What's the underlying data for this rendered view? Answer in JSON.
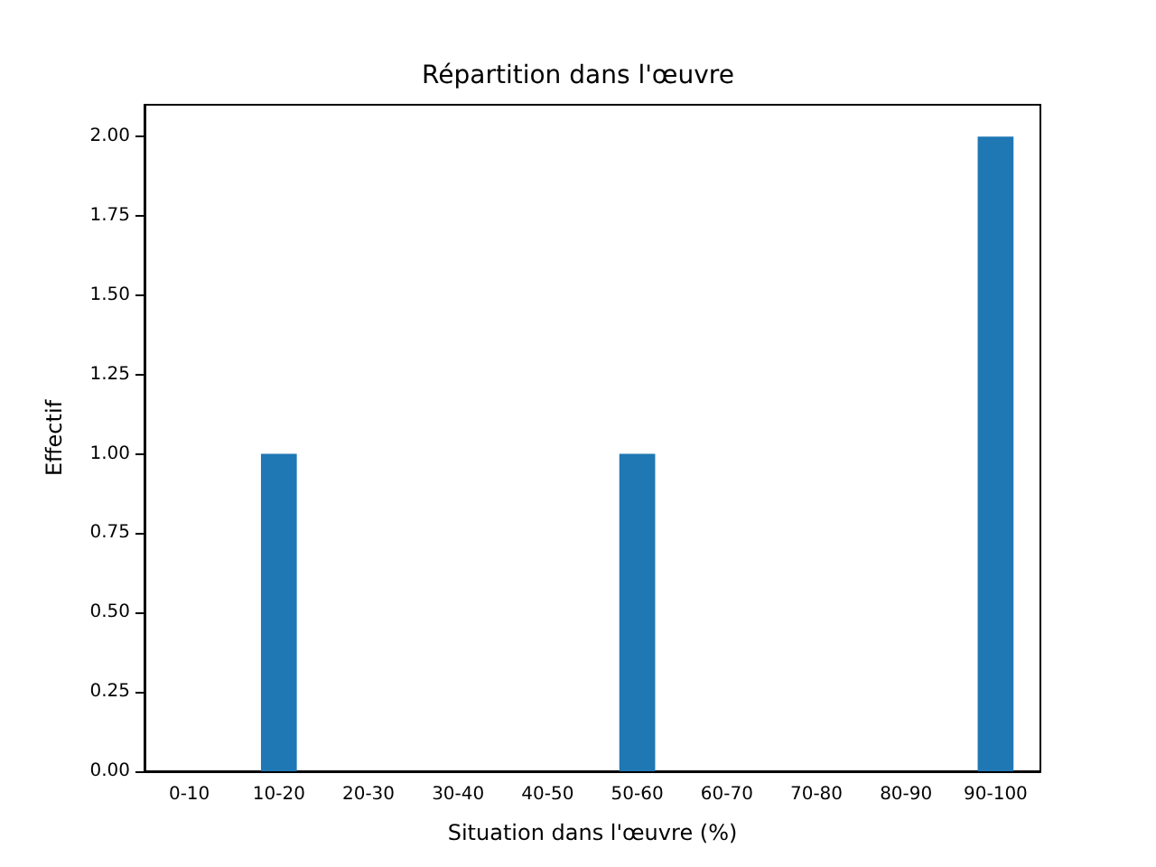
{
  "chart_data": {
    "type": "bar",
    "title": "Répartition dans l'œuvre",
    "xlabel": "Situation dans l'œuvre (%)",
    "ylabel": "Effectif",
    "categories": [
      "0-10",
      "10-20",
      "20-30",
      "30-40",
      "40-50",
      "50-60",
      "60-70",
      "70-80",
      "80-90",
      "90-100"
    ],
    "values": [
      0,
      1,
      0,
      0,
      0,
      1,
      0,
      0,
      0,
      2
    ],
    "color": "#1f77b4",
    "ylim": [
      0,
      2.1
    ],
    "yticks": [
      {
        "value": 0,
        "label": "0.00"
      },
      {
        "value": 0.25,
        "label": "0.25"
      },
      {
        "value": 0.5,
        "label": "0.50"
      },
      {
        "value": 0.75,
        "label": "0.75"
      },
      {
        "value": 1,
        "label": "1.00"
      },
      {
        "value": 1.25,
        "label": "1.25"
      },
      {
        "value": 1.5,
        "label": "1.50"
      },
      {
        "value": 1.75,
        "label": "1.75"
      },
      {
        "value": 2,
        "label": "2.00"
      }
    ],
    "grid": false
  }
}
